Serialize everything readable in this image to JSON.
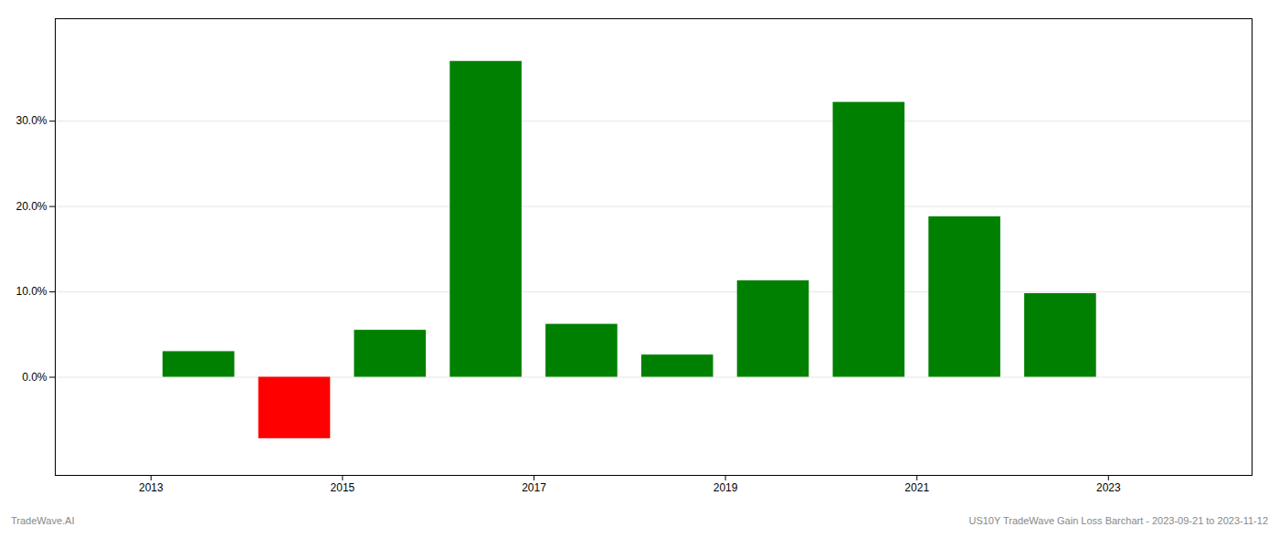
{
  "chart_data": {
    "type": "bar",
    "x": [
      2013.5,
      2014.5,
      2015.5,
      2016.5,
      2017.5,
      2018.5,
      2019.5,
      2020.5,
      2021.5,
      2022.5
    ],
    "values": [
      0.03,
      -0.072,
      0.055,
      0.37,
      0.062,
      0.026,
      0.113,
      0.322,
      0.188,
      0.098
    ],
    "colors": [
      "#008000",
      "#ff0000",
      "#008000",
      "#008000",
      "#008000",
      "#008000",
      "#008000",
      "#008000",
      "#008000",
      "#008000"
    ],
    "xlim": [
      2012.0,
      2024.5
    ],
    "xticks": [
      2013,
      2015,
      2017,
      2019,
      2021,
      2023
    ],
    "ylim": [
      -0.115,
      0.42
    ],
    "yticks": [
      {
        "value": 0.0,
        "label": "0.0%"
      },
      {
        "value": 0.1,
        "label": "10.0%"
      },
      {
        "value": 0.2,
        "label": "20.0%"
      },
      {
        "value": 0.3,
        "label": "30.0%"
      }
    ],
    "grid": true,
    "annotations": [
      "TradeWave.AI",
      "US10Y TradeWave Gain Loss Barchart - 2023-09-21 to 2023-11-12"
    ]
  }
}
